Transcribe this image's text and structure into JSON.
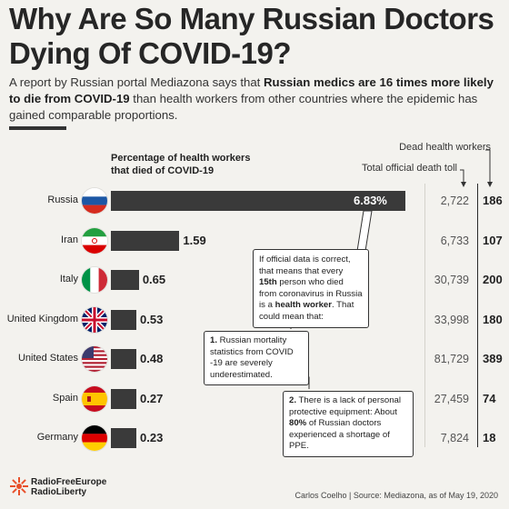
{
  "title": "Why Are So Many Russian Doctors Dying Of COVID-19?",
  "subtitle": {
    "part1": "A report by Russian portal Mediazona says that ",
    "bold": "Russian medics are 16 times more likely to die from COVID-19",
    "part2": " than health workers from other countries where the epidemic has gained comparable proportions."
  },
  "legend": {
    "pct_label": "Percentage of health workers that died of COVID-19",
    "dead_label": "Dead health workers",
    "toll_label": "Total official death toll"
  },
  "chart_data": {
    "type": "bar",
    "orientation": "horizontal",
    "unit": "%",
    "categories": [
      "Russia",
      "Iran",
      "Italy",
      "United Kingdom",
      "United States",
      "Spain",
      "Germany"
    ],
    "values": [
      6.83,
      1.59,
      0.65,
      0.53,
      0.48,
      0.27,
      0.23
    ],
    "value_labels": [
      "6.83%",
      "1.59",
      "0.65",
      "0.53",
      "0.48",
      "0.27",
      "0.23"
    ],
    "total_death_toll": [
      "2,722",
      "6,733",
      "30,739",
      "33,998",
      "81,729",
      "27,459",
      "7,824"
    ],
    "dead_health_workers": [
      "186",
      "107",
      "200",
      "180",
      "389",
      "74",
      "18"
    ],
    "xlim": [
      0,
      6.83
    ]
  },
  "callouts": {
    "main": {
      "t1": "If official data is correct, that means that every ",
      "b1": "15th",
      "t2": " person who died from coronavirus in Russia is a ",
      "b2": "health worker",
      "t3": ". That could mean that:"
    },
    "one": {
      "num": "1.",
      "text": " Russian mortality statistics from COVID -19 are severely underestimated."
    },
    "two": {
      "num": "2.",
      "t1": " There is a lack of personal protective equipment: About ",
      "b1": "80%",
      "t2": " of Russian doctors experienced a shortage of PPE."
    }
  },
  "footer": {
    "logo_line1": "RadioFreeEurope",
    "logo_line2": "RadioLiberty",
    "credit": "Carlos Coelho | Source: Mediazona, as of May 19, 2020"
  },
  "colors": {
    "bar": "#3a3a3a",
    "background": "#f3f2ee",
    "logo": "#e8502a"
  }
}
